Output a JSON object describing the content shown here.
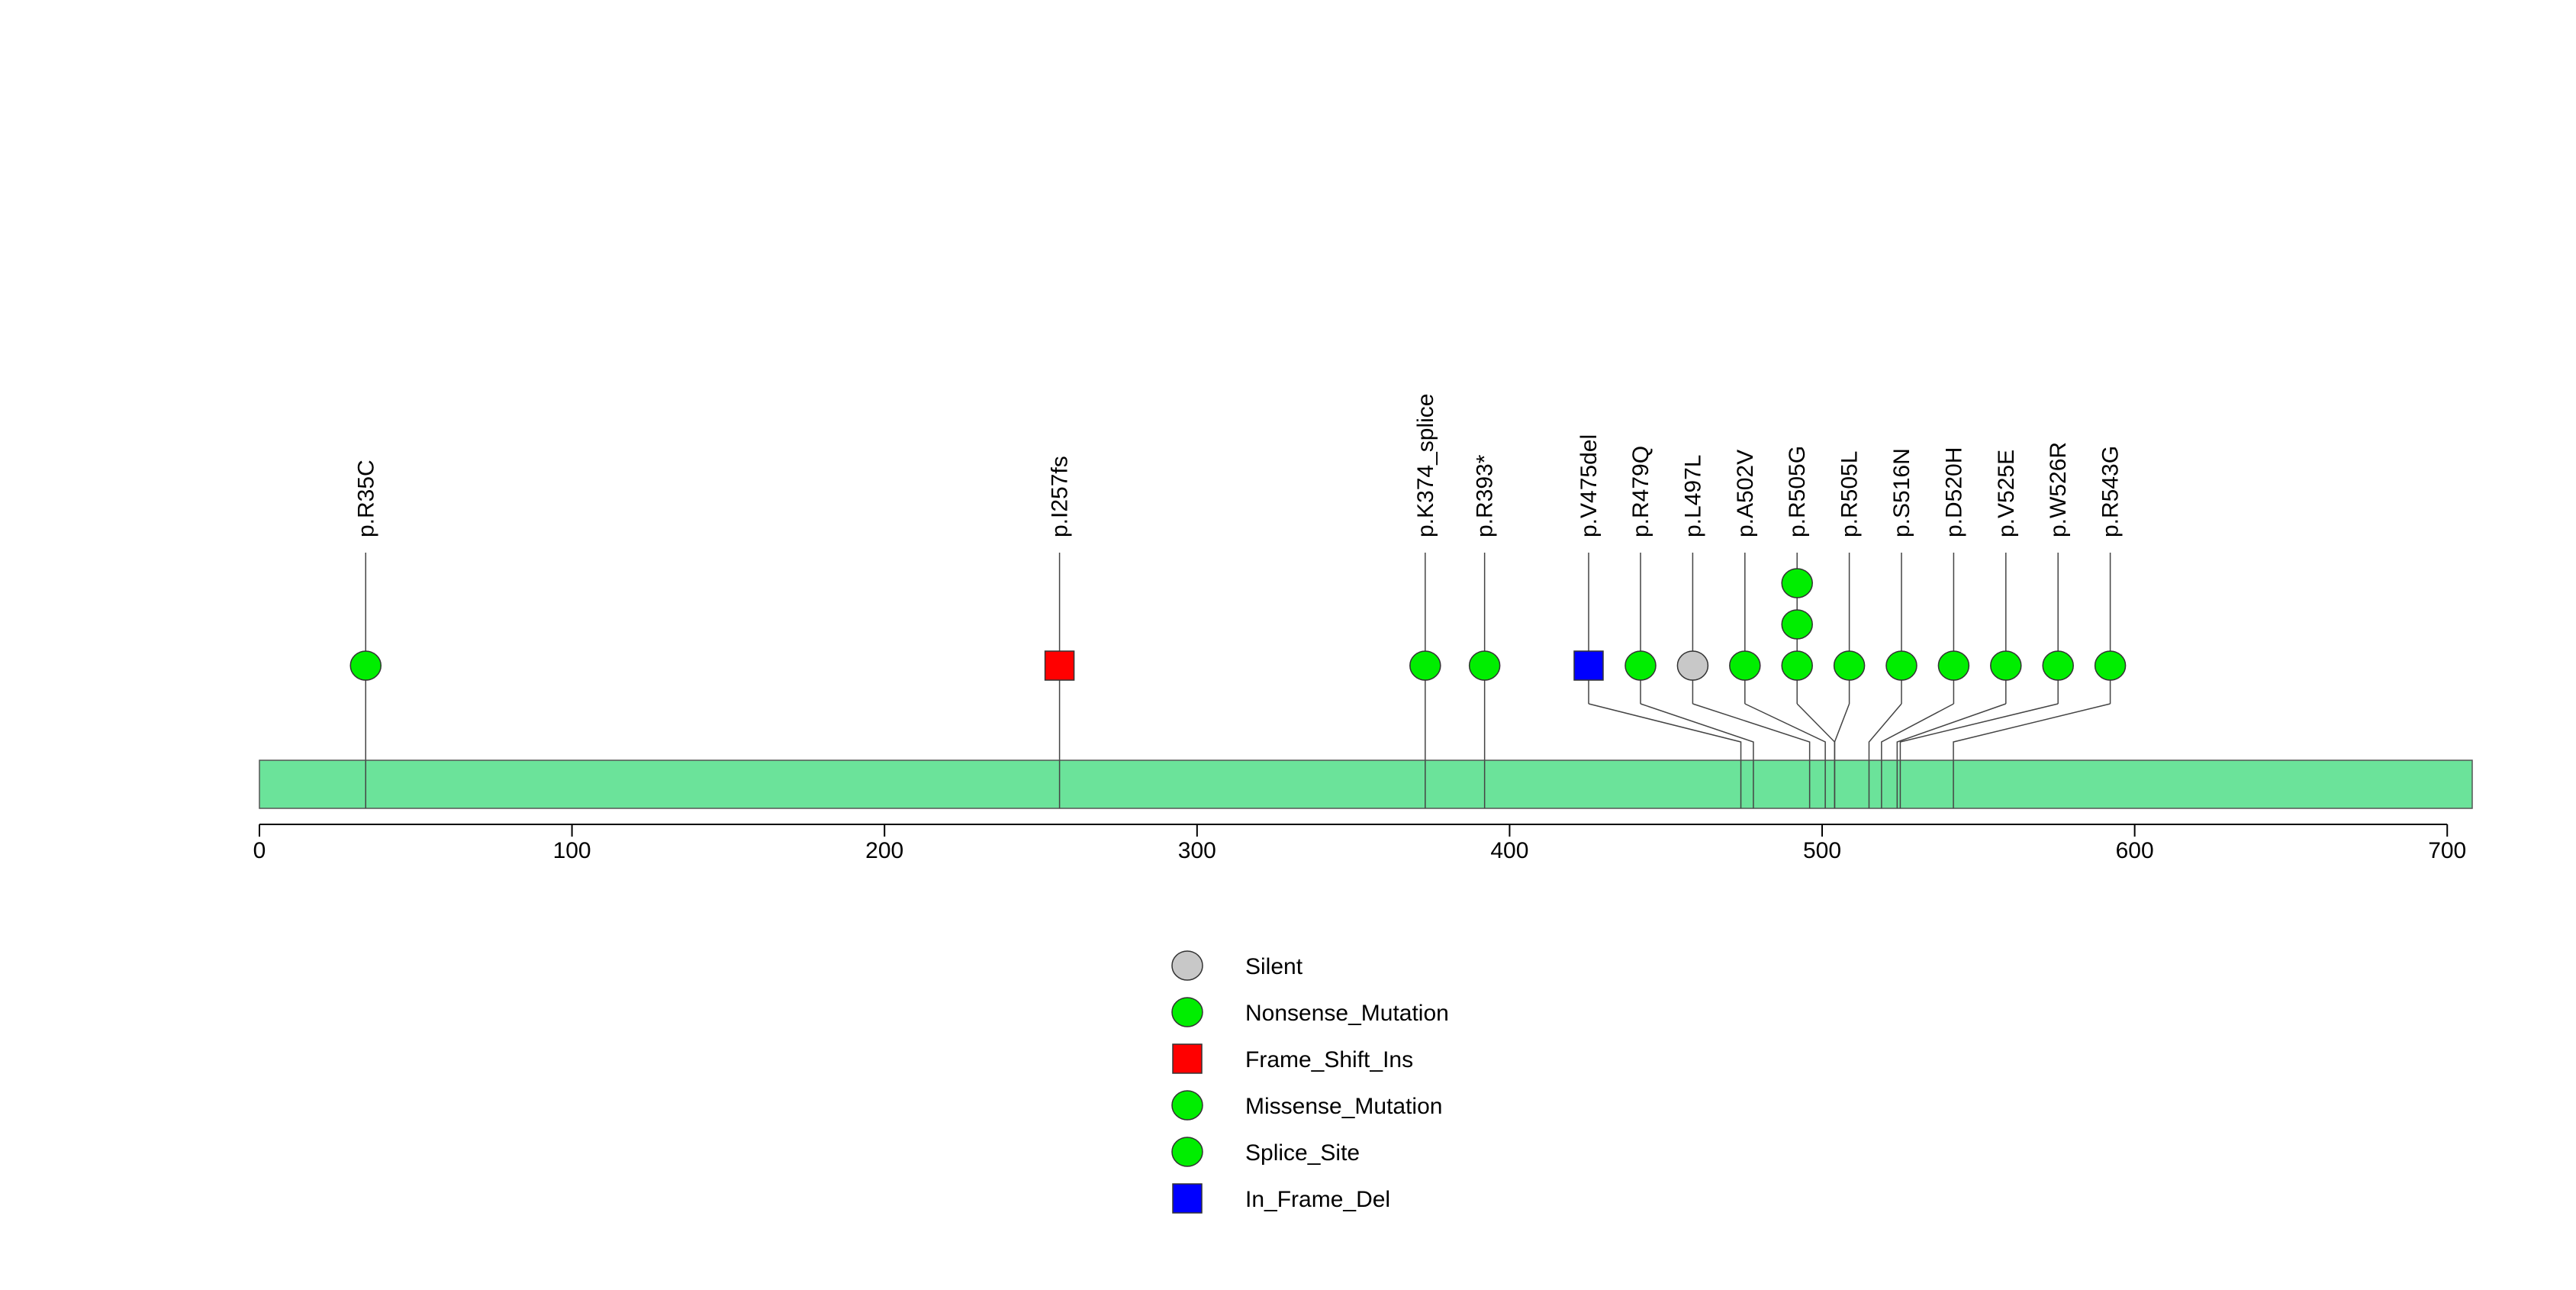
{
  "chart_data": {
    "type": "lollipop",
    "xlim": [
      0,
      708
    ],
    "protein_length": 708,
    "axis_ticks": [
      0,
      100,
      200,
      300,
      400,
      500,
      600,
      700
    ],
    "mutations": [
      {
        "label": "p.R35C",
        "position": 34,
        "type": "Nonsense_Mutation",
        "count": 1
      },
      {
        "label": "p.I257fs",
        "position": 256,
        "type": "Frame_Shift_Ins",
        "count": 1
      },
      {
        "label": "p.K374_splice",
        "position": 373,
        "type": "Splice_Site",
        "count": 1
      },
      {
        "label": "p.R393*",
        "position": 392,
        "type": "Nonsense_Mutation",
        "count": 1
      },
      {
        "label": "p.V475del",
        "position": 474,
        "type": "In_Frame_Del",
        "count": 1
      },
      {
        "label": "p.R479Q",
        "position": 478,
        "type": "Missense_Mutation",
        "count": 1
      },
      {
        "label": "p.L497L",
        "position": 496,
        "type": "Silent",
        "count": 1
      },
      {
        "label": "p.A502V",
        "position": 501,
        "type": "Missense_Mutation",
        "count": 1
      },
      {
        "label": "p.R505G",
        "position": 504,
        "type": "Missense_Mutation",
        "count": 3
      },
      {
        "label": "p.R505L",
        "position": 504,
        "type": "Missense_Mutation",
        "count": 1
      },
      {
        "label": "p.S516N",
        "position": 515,
        "type": "Missense_Mutation",
        "count": 1
      },
      {
        "label": "p.D520H",
        "position": 519,
        "type": "Missense_Mutation",
        "count": 1
      },
      {
        "label": "p.V525E",
        "position": 524,
        "type": "Missense_Mutation",
        "count": 1
      },
      {
        "label": "p.W526R",
        "position": 525,
        "type": "Missense_Mutation",
        "count": 1
      },
      {
        "label": "p.R543G",
        "position": 542,
        "type": "Missense_Mutation",
        "count": 1
      }
    ],
    "legend": [
      {
        "label": "Silent",
        "shape": "circle",
        "color": "#c8c8c8"
      },
      {
        "label": "Nonsense_Mutation",
        "shape": "circle",
        "color": "#00ee00"
      },
      {
        "label": "Frame_Shift_Ins",
        "shape": "square",
        "color": "#ff0000"
      },
      {
        "label": "Missense_Mutation",
        "shape": "circle",
        "color": "#00ee00"
      },
      {
        "label": "Splice_Site",
        "shape": "circle",
        "color": "#00ee00"
      },
      {
        "label": "In_Frame_Del",
        "shape": "square",
        "color": "#0000ff"
      }
    ],
    "colors": {
      "protein_bar": "#6be39a",
      "Silent": "#c8c8c8",
      "Nonsense_Mutation": "#00ee00",
      "Missense_Mutation": "#00ee00",
      "Splice_Site": "#00ee00",
      "Frame_Shift_Ins": "#ff0000",
      "In_Frame_Del": "#0000ff"
    }
  }
}
